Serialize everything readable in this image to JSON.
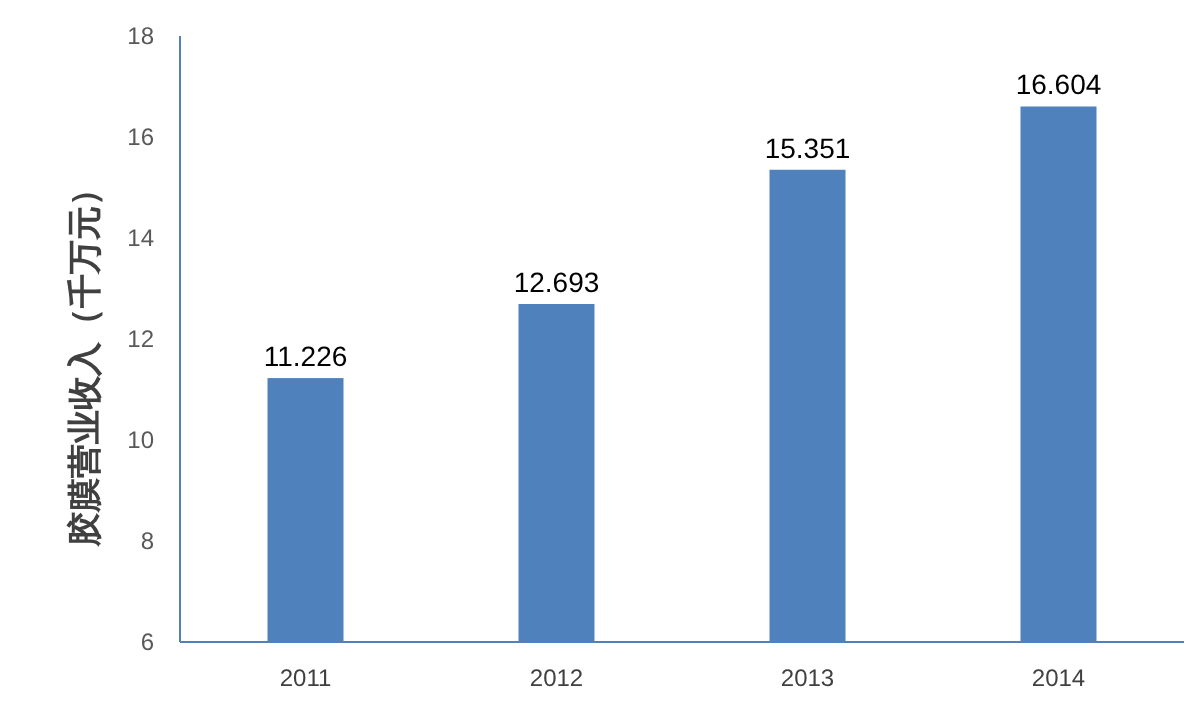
{
  "chart_data": {
    "type": "bar",
    "ylabel": "胶膜营业收入（千万元）",
    "categories": [
      "2011",
      "2012",
      "2013",
      "2014"
    ],
    "values": [
      11.226,
      12.693,
      15.351,
      16.604
    ],
    "color": "#4f81bd",
    "ylim": [
      6,
      18
    ],
    "yticks": [
      6,
      8,
      10,
      12,
      14,
      16,
      18
    ],
    "data_labels": true,
    "grid": false
  }
}
